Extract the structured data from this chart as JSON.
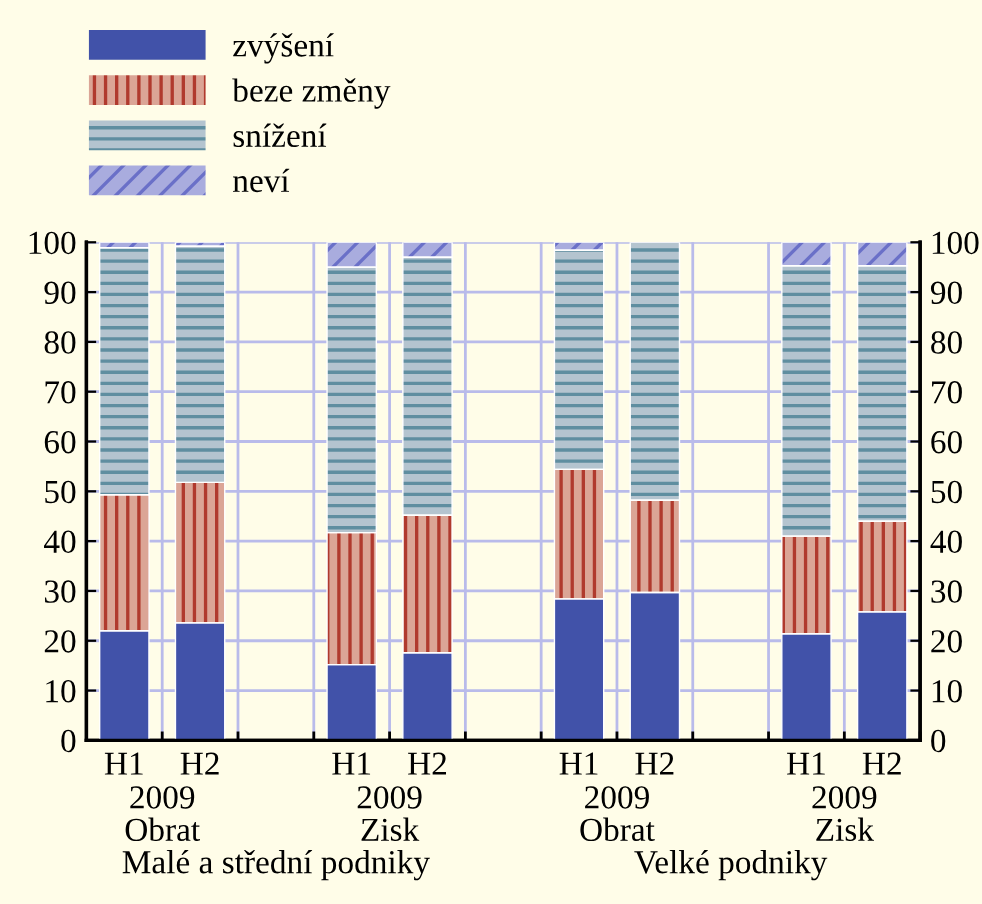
{
  "chart_data": {
    "type": "bar",
    "stacked": true,
    "categories": [
      "H1",
      "H2",
      null,
      "H1",
      "H2",
      null,
      "H1",
      "H2",
      null,
      "H1",
      "H2"
    ],
    "series": [
      {
        "name": "zvýšení",
        "color": "#4152a9",
        "values": [
          22,
          23.6,
          null,
          15.2,
          17.6,
          null,
          28.4,
          29.7,
          null,
          21.4,
          25.8
        ]
      },
      {
        "name": "beze změny",
        "color": "#dba596",
        "values": [
          27.3,
          28.2,
          null,
          26.5,
          27.6,
          null,
          26.0,
          18.5,
          null,
          19.6,
          18.2
        ]
      },
      {
        "name": "snížení",
        "color": "#b4c4cf",
        "values": [
          49.6,
          47.4,
          null,
          53.3,
          51.8,
          null,
          44.0,
          51.8,
          null,
          54.3,
          51.3
        ]
      },
      {
        "name": "neví",
        "color": "#a9acde",
        "values": [
          1.1,
          0.8,
          null,
          5.0,
          3.0,
          null,
          1.6,
          null,
          null,
          4.7,
          4.7
        ]
      }
    ],
    "ylim": [
      0,
      100
    ],
    "yticks": [
      0,
      10,
      20,
      30,
      40,
      50,
      60,
      70,
      80,
      90,
      100
    ],
    "y2lim": [
      0,
      100
    ],
    "y2ticks": [
      0,
      10,
      20,
      30,
      40,
      50,
      60,
      70,
      80,
      90,
      100
    ],
    "grid": true,
    "legend": "top left",
    "annotations": [
      "2009",
      "Obrat",
      "2009",
      "Zisk",
      "2009",
      "Obrat",
      "2009",
      "Zisk",
      "Malé a střední podniky",
      "Velké podniky"
    ]
  }
}
